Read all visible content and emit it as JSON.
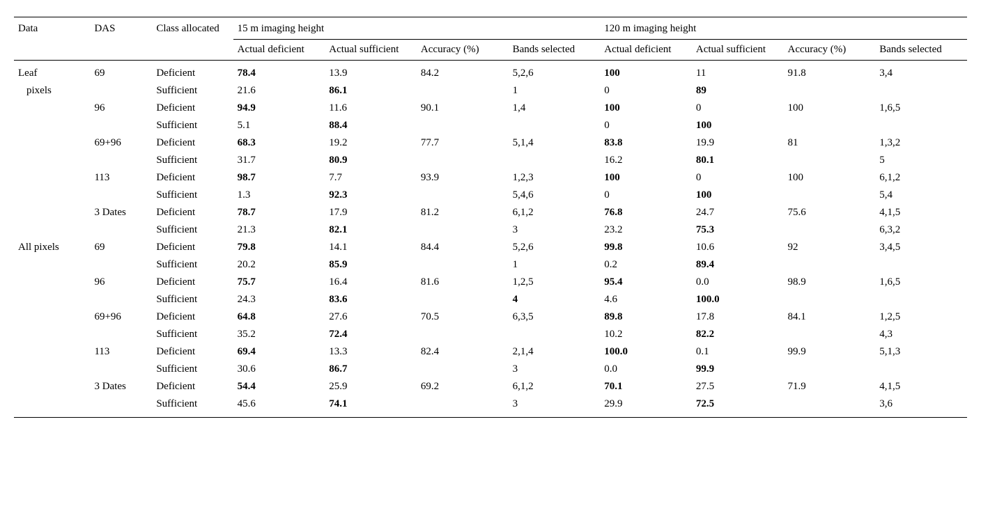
{
  "table": {
    "header": {
      "data": "Data",
      "das": "DAS",
      "class": "Class allocated",
      "group15": "15 m imaging height",
      "group120": "120 m imaging height",
      "sub": {
        "actual_def": "Actual deficient",
        "actual_suf": "Actual sufficient",
        "accuracy": "Accuracy (%)",
        "bands": "Bands selected"
      }
    },
    "class_labels": {
      "def": "Deficient",
      "suf": "Sufficient"
    },
    "groups": [
      {
        "data_label": "Leaf pixels",
        "data_label_line1": "Leaf",
        "data_label_line2": "pixels",
        "blocks": [
          {
            "das": "69",
            "def": {
              "h15_ad": "78.4",
              "h15_as": "13.9",
              "h15_acc": "84.2",
              "h15_bands": "5,2,6",
              "h120_ad": "100",
              "h120_as": "11",
              "h120_acc": "91.8",
              "h120_bands": "3,4"
            },
            "suf": {
              "h15_ad": "21.6",
              "h15_as": "86.1",
              "h15_bands": "1",
              "h120_ad": "0",
              "h120_as": "89"
            }
          },
          {
            "das": "96",
            "def": {
              "h15_ad": "94.9",
              "h15_as": "11.6",
              "h15_acc": "90.1",
              "h15_bands": "1,4",
              "h120_ad": "100",
              "h120_as": "0",
              "h120_acc": "100",
              "h120_bands": "1,6,5"
            },
            "suf": {
              "h15_ad": "5.1",
              "h15_as": "88.4",
              "h120_ad": "0",
              "h120_as": "100"
            }
          },
          {
            "das": "69+96",
            "def": {
              "h15_ad": "68.3",
              "h15_as": "19.2",
              "h15_acc": "77.7",
              "h15_bands": "5,1,4",
              "h120_ad": "83.8",
              "h120_as": "19.9",
              "h120_acc": "81",
              "h120_bands": "1,3,2"
            },
            "suf": {
              "h15_ad": "31.7",
              "h15_as": "80.9",
              "h120_ad": "16.2",
              "h120_as": "80.1",
              "h120_bands": "5"
            }
          },
          {
            "das": "113",
            "def": {
              "h15_ad": "98.7",
              "h15_as": "7.7",
              "h15_acc": "93.9",
              "h15_bands": "1,2,3",
              "h120_ad": "100",
              "h120_as": "0",
              "h120_acc": "100",
              "h120_bands": "6,1,2"
            },
            "suf": {
              "h15_ad": "1.3",
              "h15_as": "92.3",
              "h15_bands": "5,4,6",
              "h120_ad": "0",
              "h120_as": "100",
              "h120_bands": "5,4"
            }
          },
          {
            "das": "3 Dates",
            "def": {
              "h15_ad": "78.7",
              "h15_as": "17.9",
              "h15_acc": "81.2",
              "h15_bands": "6,1,2",
              "h120_ad": "76.8",
              "h120_as": "24.7",
              "h120_acc": "75.6",
              "h120_bands": "4,1,5"
            },
            "suf": {
              "h15_ad": "21.3",
              "h15_as": "82.1",
              "h15_bands": "3",
              "h120_ad": "23.2",
              "h120_as": "75.3",
              "h120_bands": "6,3,2"
            }
          }
        ]
      },
      {
        "data_label": "All pixels",
        "blocks": [
          {
            "das": "69",
            "def": {
              "h15_ad": "79.8",
              "h15_as": "14.1",
              "h15_acc": "84.4",
              "h15_bands": "5,2,6",
              "h120_ad": "99.8",
              "h120_as": "10.6",
              "h120_acc": "92",
              "h120_bands": "3,4,5"
            },
            "suf": {
              "h15_ad": "20.2",
              "h15_as": "85.9",
              "h15_bands": "1",
              "h120_ad": "0.2",
              "h120_as": "89.4"
            }
          },
          {
            "das": "96",
            "def": {
              "h15_ad": "75.7",
              "h15_as": "16.4",
              "h15_acc": "81.6",
              "h15_bands": "1,2,5",
              "h120_ad": "95.4",
              "h120_as": "0.0",
              "h120_acc": "98.9",
              "h120_bands": "1,6,5"
            },
            "suf": {
              "h15_ad": "24.3",
              "h15_as": "83.6",
              "h15_bands": "4",
              "h15_bands_bold": true,
              "h120_ad": "4.6",
              "h120_as": "100.0"
            }
          },
          {
            "das": "69+96",
            "def": {
              "h15_ad": "64.8",
              "h15_as": "27.6",
              "h15_acc": "70.5",
              "h15_bands": "6,3,5",
              "h120_ad": "89.8",
              "h120_as": "17.8",
              "h120_acc": "84.1",
              "h120_bands": "1,2,5"
            },
            "suf": {
              "h15_ad": "35.2",
              "h15_as": "72.4",
              "h120_ad": "10.2",
              "h120_as": "82.2",
              "h120_bands": "4,3"
            }
          },
          {
            "das": "113",
            "def": {
              "h15_ad": "69.4",
              "h15_as": "13.3",
              "h15_acc": "82.4",
              "h15_bands": "2,1,4",
              "h120_ad": "100.0",
              "h120_as": "0.1",
              "h120_acc": "99.9",
              "h120_bands": "5,1,3"
            },
            "suf": {
              "h15_ad": "30.6",
              "h15_as": "86.7",
              "h15_bands": "3",
              "h120_ad": "0.0",
              "h120_as": "99.9"
            }
          },
          {
            "das": "3 Dates",
            "def": {
              "h15_ad": "54.4",
              "h15_as": "25.9",
              "h15_acc": "69.2",
              "h15_bands": "6,1,2",
              "h120_ad": "70.1",
              "h120_as": "27.5",
              "h120_acc": "71.9",
              "h120_bands": "4,1,5"
            },
            "suf": {
              "h15_ad": "45.6",
              "h15_as": "74.1",
              "h15_bands": "3",
              "h120_ad": "29.9",
              "h120_as": "72.5",
              "h120_bands": "3,6"
            }
          }
        ]
      }
    ]
  }
}
